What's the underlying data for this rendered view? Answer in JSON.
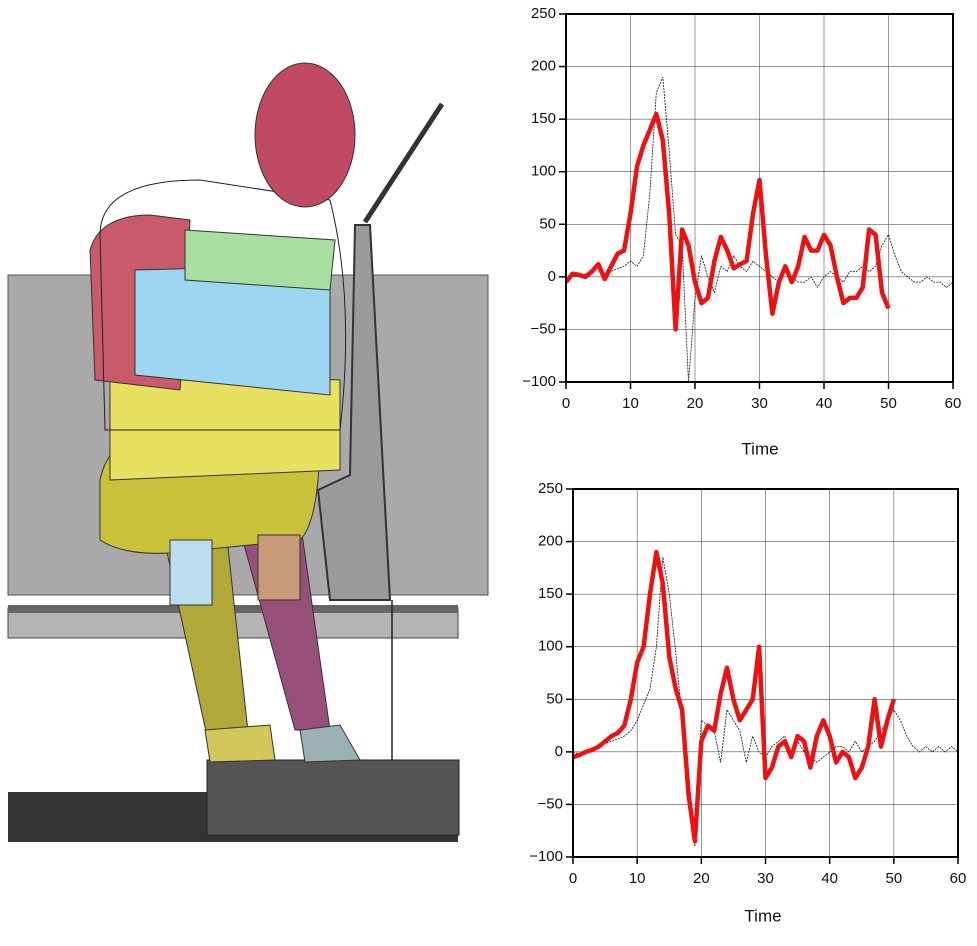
{
  "chart_data": [
    {
      "type": "line",
      "x_label": "Time",
      "x": [
        0,
        1,
        2,
        3,
        4,
        5,
        6,
        7,
        8,
        9,
        10,
        11,
        12,
        13,
        14,
        15,
        16,
        17,
        18,
        19,
        20,
        21,
        22,
        23,
        24,
        25,
        26,
        27,
        28,
        29,
        30,
        31,
        32,
        33,
        34,
        35,
        36,
        37,
        38,
        39,
        40,
        41,
        42,
        43,
        44,
        45,
        46,
        47,
        48,
        49,
        50,
        51,
        52,
        53,
        54,
        55,
        56,
        57,
        58,
        59,
        60
      ],
      "series": [
        {
          "color": "#111111",
          "values": [
            -5,
            2,
            0,
            3,
            5,
            10,
            0,
            5,
            8,
            10,
            15,
            10,
            20,
            80,
            175,
            190,
            120,
            40,
            30,
            -100,
            -20,
            20,
            0,
            -15,
            10,
            5,
            20,
            10,
            5,
            15,
            10,
            5,
            0,
            -5,
            5,
            0,
            -5,
            -5,
            0,
            -10,
            0,
            5,
            0,
            -5,
            5,
            5,
            10,
            5,
            10,
            30,
            40,
            20,
            5,
            0,
            -5,
            -5,
            0,
            -5,
            -5,
            -10,
            -5
          ]
        },
        {
          "color": "#ee1111",
          "values": [
            -5,
            3,
            2,
            0,
            5,
            12,
            -2,
            10,
            22,
            25,
            60,
            105,
            125,
            140,
            155,
            130,
            60,
            -50,
            45,
            30,
            -5,
            -25,
            -20,
            15,
            38,
            25,
            8,
            12,
            15,
            60,
            92,
            20,
            -35,
            -5,
            10,
            -5,
            10,
            38,
            25,
            25,
            40,
            30,
            0,
            -25,
            -20,
            -20,
            -10,
            45,
            40,
            -15,
            -30,
            null,
            null,
            null,
            null,
            null,
            null,
            null,
            null,
            null,
            null
          ]
        }
      ],
      "xlim": [
        0,
        60
      ],
      "ylim": [
        -100,
        250
      ],
      "xticks": [
        0,
        10,
        20,
        30,
        40,
        50,
        60
      ],
      "yticks": [
        {
          "value": -100,
          "label": "−100"
        },
        {
          "value": -50,
          "label": "−50"
        },
        0,
        50,
        100,
        150,
        200,
        250
      ],
      "grid": true
    },
    {
      "type": "line",
      "x_label": "Time",
      "x": [
        0,
        1,
        2,
        3,
        4,
        5,
        6,
        7,
        8,
        9,
        10,
        11,
        12,
        13,
        14,
        15,
        16,
        17,
        18,
        19,
        20,
        21,
        22,
        23,
        24,
        25,
        26,
        27,
        28,
        29,
        30,
        31,
        32,
        33,
        34,
        35,
        36,
        37,
        38,
        39,
        40,
        41,
        42,
        43,
        44,
        45,
        46,
        47,
        48,
        49,
        50,
        51,
        52,
        53,
        54,
        55,
        56,
        57,
        58,
        59,
        60
      ],
      "series": [
        {
          "color": "#111111",
          "values": [
            0,
            -2,
            0,
            2,
            5,
            8,
            10,
            12,
            15,
            20,
            30,
            45,
            60,
            100,
            185,
            150,
            95,
            30,
            -20,
            -90,
            30,
            25,
            20,
            -10,
            40,
            30,
            20,
            -10,
            15,
            0,
            -5,
            5,
            10,
            15,
            0,
            10,
            0,
            -5,
            -10,
            -5,
            0,
            5,
            5,
            0,
            10,
            0,
            5,
            10,
            20,
            30,
            40,
            30,
            15,
            5,
            0,
            5,
            0,
            5,
            0,
            5,
            0
          ]
        },
        {
          "color": "#ee1111",
          "values": [
            -5,
            -3,
            0,
            2,
            5,
            10,
            15,
            18,
            25,
            50,
            85,
            100,
            150,
            190,
            160,
            90,
            60,
            40,
            -40,
            -85,
            10,
            25,
            20,
            55,
            80,
            50,
            30,
            40,
            50,
            100,
            -25,
            -15,
            5,
            10,
            -5,
            15,
            10,
            -15,
            15,
            30,
            15,
            -10,
            0,
            -5,
            -25,
            -15,
            5,
            50,
            5,
            30,
            50,
            null,
            null,
            null,
            null,
            null,
            null,
            null,
            null,
            null,
            null
          ]
        }
      ],
      "xlim": [
        0,
        60
      ],
      "ylim": [
        -100,
        250
      ],
      "xticks": [
        0,
        10,
        20,
        30,
        40,
        50,
        60
      ],
      "yticks": [
        {
          "value": -100,
          "label": "−100"
        },
        {
          "value": -50,
          "label": "−50"
        },
        0,
        50,
        100,
        150,
        200,
        250
      ],
      "grid": true
    }
  ]
}
